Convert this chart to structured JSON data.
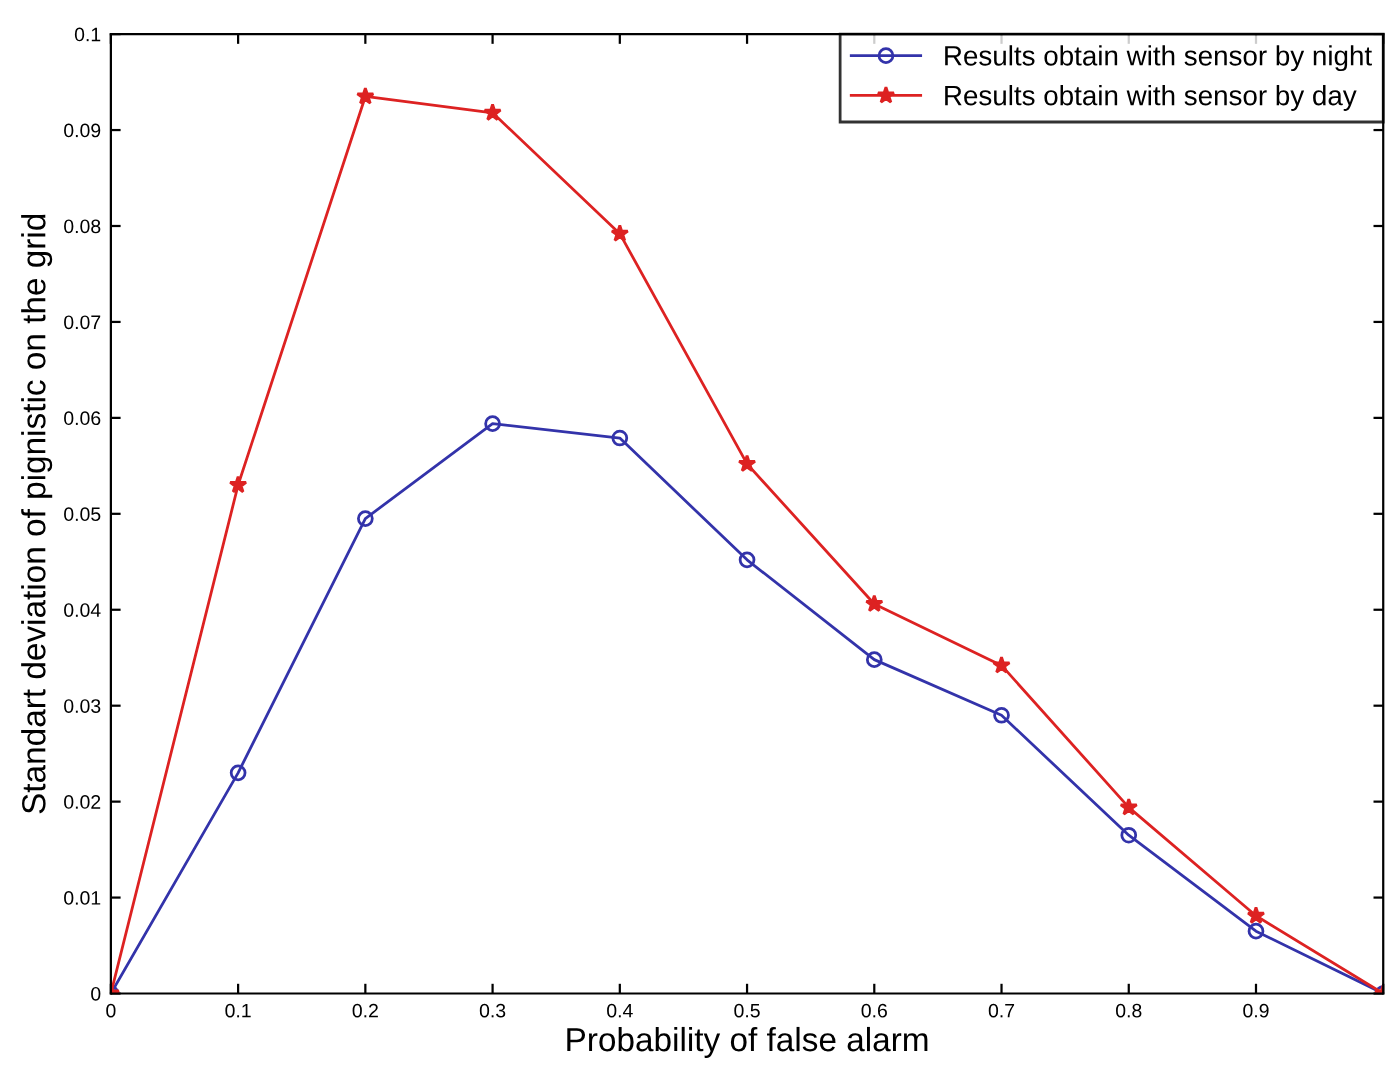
{
  "chart_data": {
    "type": "line",
    "xlabel": "Probability of false alarm",
    "ylabel": "Standart deviation of pignistic on the grid",
    "x": [
      0,
      0.1,
      0.2,
      0.3,
      0.4,
      0.5,
      0.6,
      0.7,
      0.8,
      0.9,
      1
    ],
    "series": [
      {
        "name": "Results obtain with sensor by night",
        "color": "#3333aa",
        "marker": "circle",
        "values": [
          0,
          0.023,
          0.0495,
          0.0594,
          0.0579,
          0.0452,
          0.0348,
          0.029,
          0.0165,
          0.0065,
          0
        ]
      },
      {
        "name": "Results obtain with sensor by day",
        "color": "#dd2222",
        "marker": "star",
        "values": [
          0,
          0.053,
          0.0935,
          0.0918,
          0.0792,
          0.0552,
          0.0406,
          0.0342,
          0.0194,
          0.0081,
          0
        ]
      }
    ],
    "xlim": [
      0,
      1
    ],
    "ylim": [
      0,
      0.1
    ],
    "xticks": [
      0,
      0.1,
      0.2,
      0.3,
      0.4,
      0.5,
      0.6,
      0.7,
      0.8,
      0.9,
      {
        "value": 1,
        "label": null
      }
    ],
    "yticks": [
      0,
      0.01,
      0.02,
      0.03,
      0.04,
      0.05,
      0.06,
      0.07,
      0.08,
      0.09,
      0.1
    ],
    "legend": "top right",
    "grid": false,
    "line_style": "solid"
  }
}
